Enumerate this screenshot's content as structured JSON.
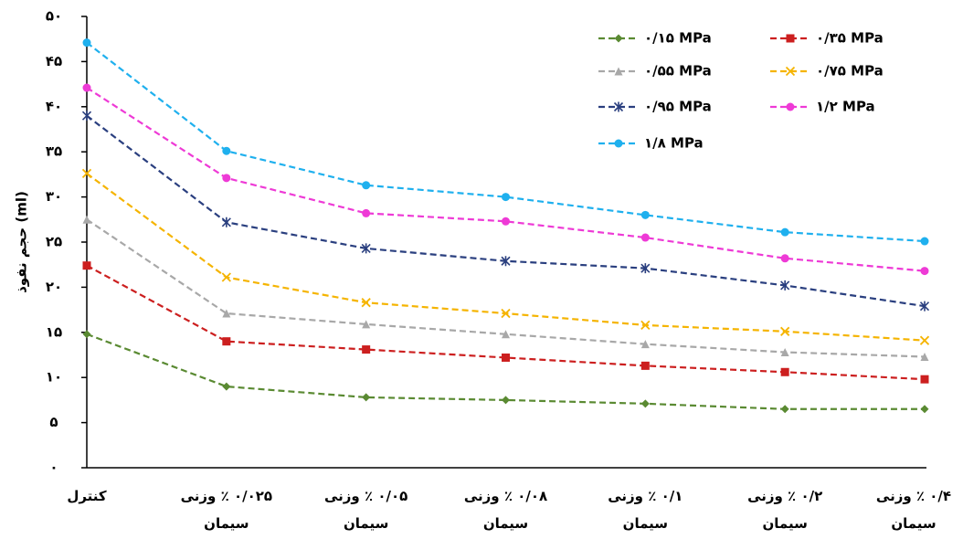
{
  "chart_data": {
    "type": "line",
    "y_label": "حجم نفوذ (ml)",
    "categories": [
      "کنترل",
      "۰/۰۲۵ ٪ وزنی سیمان",
      "۰/۰۵ ٪ وزنی سیمان",
      "۰/۰۸ ٪ وزنی سیمان",
      "۰/۱ ٪ وزنی سیمان",
      "۰/۲ ٪ وزنی سیمان",
      "۰/۴ ٪ وزنی سیمان"
    ],
    "series": [
      {
        "name": "۰/۱۵ MPa",
        "color": "#5a8a32",
        "marker": "diamond",
        "values": [
          14.8,
          9.0,
          7.8,
          7.5,
          7.1,
          6.5,
          6.5
        ]
      },
      {
        "name": "۰/۳۵ MPa",
        "color": "#cc1f1f",
        "marker": "square",
        "values": [
          22.4,
          14.0,
          13.1,
          12.2,
          11.3,
          10.6,
          9.8
        ]
      },
      {
        "name": "۰/۵۵ MPa",
        "color": "#a8a8a8",
        "marker": "triangle",
        "values": [
          27.5,
          17.1,
          15.9,
          14.8,
          13.7,
          12.8,
          12.3
        ]
      },
      {
        "name": "۰/۷۵ MPa",
        "color": "#f5b400",
        "marker": "x",
        "values": [
          32.6,
          21.1,
          18.3,
          17.1,
          15.8,
          15.1,
          14.1
        ]
      },
      {
        "name": "۰/۹۵ MPa",
        "color": "#2a3f7f",
        "marker": "star",
        "values": [
          39.0,
          27.2,
          24.3,
          22.9,
          22.1,
          20.2,
          17.9
        ]
      },
      {
        "name": "۱/۲ MPa",
        "color": "#ee3ad6",
        "marker": "circle",
        "values": [
          42.1,
          32.1,
          28.2,
          27.3,
          25.5,
          23.2,
          21.8
        ]
      },
      {
        "name": "۱/۸ MPa",
        "color": "#1fb0ee",
        "marker": "circle",
        "values": [
          47.1,
          35.1,
          31.3,
          30.0,
          28.0,
          26.1,
          25.1
        ]
      }
    ],
    "ylim": [
      0,
      50
    ],
    "yticks": [
      {
        "value": 0,
        "label": "۰"
      },
      {
        "value": 5,
        "label": "۵"
      },
      {
        "value": 10,
        "label": "۱۰"
      },
      {
        "value": 15,
        "label": "۱۵"
      },
      {
        "value": 20,
        "label": "۲۰"
      },
      {
        "value": 25,
        "label": "۲۵"
      },
      {
        "value": 30,
        "label": "۳۰"
      },
      {
        "value": 35,
        "label": "۳۵"
      },
      {
        "value": 40,
        "label": "۴۰"
      },
      {
        "value": 45,
        "label": "۴۵"
      },
      {
        "value": 50,
        "label": "۵۰"
      }
    ],
    "grid": false
  }
}
